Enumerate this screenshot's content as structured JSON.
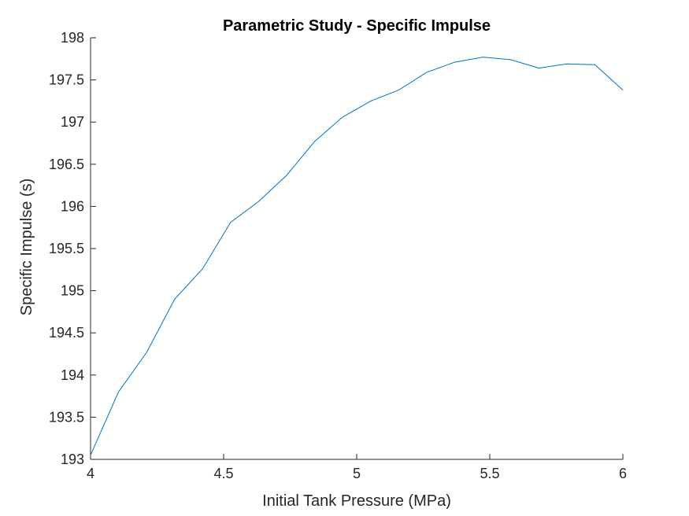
{
  "chart_data": {
    "type": "line",
    "title": "Parametric Study - Specific Impulse",
    "xlabel": "Initial Tank Pressure (MPa)",
    "ylabel": "Specific Impulse (s)",
    "xlim": [
      4,
      6
    ],
    "ylim": [
      193,
      198
    ],
    "xticks": [
      4,
      4.5,
      5,
      5.5,
      6
    ],
    "xtick_labels": [
      "4",
      "4.5",
      "5",
      "5.5",
      "6"
    ],
    "yticks": [
      193,
      193.5,
      194,
      194.5,
      195,
      195.5,
      196,
      196.5,
      197,
      197.5,
      198
    ],
    "ytick_labels": [
      "193",
      "193.5",
      "194",
      "194.5",
      "195",
      "195.5",
      "196",
      "196.5",
      "197",
      "197.5",
      "198"
    ],
    "grid": false,
    "series": [
      {
        "color": "#0072BD",
        "x": [
          4.0,
          4.105,
          4.211,
          4.316,
          4.421,
          4.526,
          4.632,
          4.737,
          4.842,
          4.947,
          5.053,
          5.158,
          5.263,
          5.368,
          5.474,
          5.579,
          5.684,
          5.789,
          5.895,
          6.0
        ],
        "y": [
          193.05,
          193.8,
          194.27,
          194.9,
          195.26,
          195.81,
          196.06,
          196.37,
          196.77,
          197.06,
          197.25,
          197.38,
          197.59,
          197.71,
          197.77,
          197.74,
          197.64,
          197.69,
          197.68,
          197.38
        ]
      }
    ]
  }
}
